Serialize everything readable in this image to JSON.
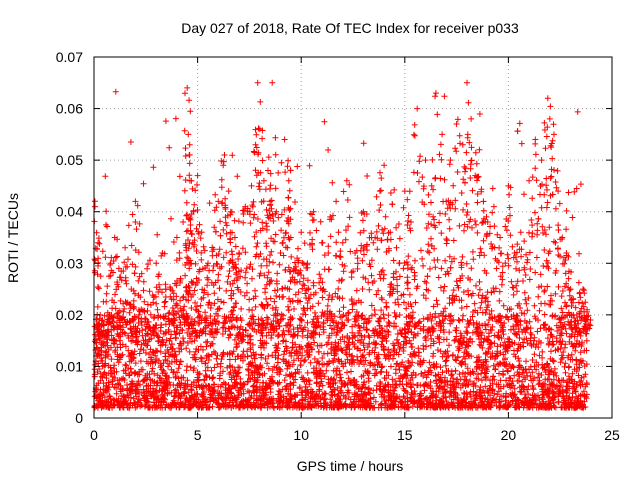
{
  "chart_data": {
    "type": "scatter",
    "title": "Day 027 of 2018, Rate Of TEC Index for receiver p033",
    "xlabel": "GPS time / hours",
    "ylabel": "ROTI / TECUs",
    "xlim": [
      0,
      25
    ],
    "ylim": [
      0,
      0.07
    ],
    "xticks": [
      0,
      5,
      10,
      15,
      20,
      25
    ],
    "xtick_labels": [
      "0",
      "5",
      "10",
      "15",
      "20",
      "25"
    ],
    "yticks": [
      0,
      0.01,
      0.02,
      0.03,
      0.04,
      0.05,
      0.06,
      0.07
    ],
    "ytick_labels": [
      "0",
      "0.01",
      "0.02",
      "0.03",
      "0.04",
      "0.05",
      "0.06",
      "0.07"
    ],
    "grid": true,
    "marker": "+",
    "color": "#ff0000",
    "series": [
      {
        "name": "ROTI",
        "x": [
          0.05,
          0.1,
          0.2,
          0.3,
          0.5,
          0.8,
          1.0,
          1.2,
          1.5,
          1.8,
          2.0,
          2.3,
          2.6,
          3.0,
          3.3,
          3.7,
          4.0,
          4.3,
          4.5,
          4.55,
          4.6,
          4.7,
          4.8,
          5.0,
          5.2,
          5.5,
          5.8,
          6.0,
          6.3,
          6.5,
          6.6,
          6.8,
          7.0,
          7.3,
          7.6,
          7.8,
          7.9,
          8.0,
          8.2,
          8.4,
          8.5,
          8.6,
          8.8,
          9.0,
          9.2,
          9.4,
          9.5,
          9.8,
          10.0,
          10.3,
          10.6,
          11.0,
          11.4,
          11.8,
          12.2,
          12.6,
          13.0,
          13.4,
          13.8,
          14.0,
          14.3,
          14.6,
          15.0,
          15.3,
          15.6,
          16.0,
          16.3,
          16.5,
          16.8,
          17.0,
          17.2,
          17.5,
          17.8,
          18.0,
          18.2,
          18.4,
          18.6,
          18.8,
          19.0,
          19.3,
          19.6,
          20.0,
          20.3,
          20.6,
          21.0,
          21.3,
          21.6,
          21.9,
          22.0,
          22.2,
          22.4,
          22.6,
          22.8,
          23.0,
          23.3,
          23.6,
          23.8
        ],
        "y": [
          0.041,
          0.012,
          0.034,
          0.02,
          0.016,
          0.03,
          0.035,
          0.029,
          0.033,
          0.025,
          0.042,
          0.028,
          0.022,
          0.03,
          0.032,
          0.025,
          0.035,
          0.038,
          0.064,
          0.055,
          0.051,
          0.046,
          0.04,
          0.047,
          0.036,
          0.03,
          0.037,
          0.042,
          0.051,
          0.044,
          0.04,
          0.035,
          0.032,
          0.041,
          0.045,
          0.053,
          0.065,
          0.056,
          0.046,
          0.048,
          0.042,
          0.065,
          0.04,
          0.032,
          0.054,
          0.046,
          0.035,
          0.031,
          0.036,
          0.03,
          0.04,
          0.034,
          0.039,
          0.036,
          0.046,
          0.032,
          0.04,
          0.035,
          0.044,
          0.049,
          0.036,
          0.033,
          0.044,
          0.038,
          0.06,
          0.05,
          0.045,
          0.063,
          0.055,
          0.042,
          0.05,
          0.057,
          0.053,
          0.065,
          0.058,
          0.047,
          0.052,
          0.042,
          0.038,
          0.041,
          0.035,
          0.045,
          0.032,
          0.036,
          0.046,
          0.054,
          0.05,
          0.062,
          0.058,
          0.055,
          0.044,
          0.035,
          0.032,
          0.025,
          0.02,
          0.025,
          0.021
        ],
        "background_band": {
          "y_min": 0.002,
          "y_max": 0.02,
          "typical": 0.008
        }
      }
    ]
  }
}
